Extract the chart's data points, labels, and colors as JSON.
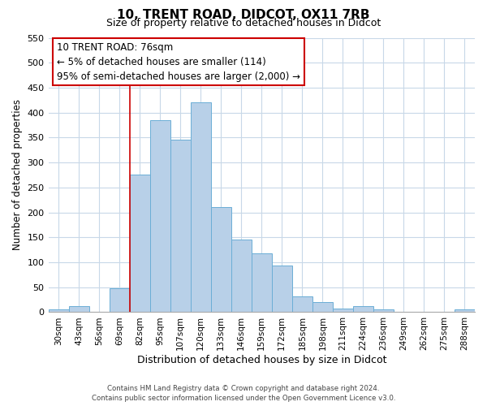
{
  "title": "10, TRENT ROAD, DIDCOT, OX11 7RB",
  "subtitle": "Size of property relative to detached houses in Didcot",
  "xlabel": "Distribution of detached houses by size in Didcot",
  "ylabel": "Number of detached properties",
  "categories": [
    "30sqm",
    "43sqm",
    "56sqm",
    "69sqm",
    "82sqm",
    "95sqm",
    "107sqm",
    "120sqm",
    "133sqm",
    "146sqm",
    "159sqm",
    "172sqm",
    "185sqm",
    "198sqm",
    "211sqm",
    "224sqm",
    "236sqm",
    "249sqm",
    "262sqm",
    "275sqm",
    "288sqm"
  ],
  "values": [
    5,
    12,
    0,
    48,
    275,
    385,
    345,
    420,
    210,
    145,
    118,
    93,
    31,
    20,
    8,
    12,
    5,
    0,
    0,
    0,
    5
  ],
  "bar_color": "#b8d0e8",
  "bar_edge_color": "#6baed6",
  "ylim": [
    0,
    550
  ],
  "yticks": [
    0,
    50,
    100,
    150,
    200,
    250,
    300,
    350,
    400,
    450,
    500,
    550
  ],
  "annotation_title": "10 TRENT ROAD: 76sqm",
  "annotation_line1": "← 5% of detached houses are smaller (114)",
  "annotation_line2": "95% of semi-detached houses are larger (2,000) →",
  "annotation_box_color": "#ffffff",
  "annotation_box_edge_color": "#cc0000",
  "footer_line1": "Contains HM Land Registry data © Crown copyright and database right 2024.",
  "footer_line2": "Contains public sector information licensed under the Open Government Licence v3.0.",
  "bg_color": "#ffffff",
  "grid_color": "#c8d8e8",
  "bar_width": 1.0,
  "red_line_index": 4,
  "title_fontsize": 11,
  "subtitle_fontsize": 9
}
